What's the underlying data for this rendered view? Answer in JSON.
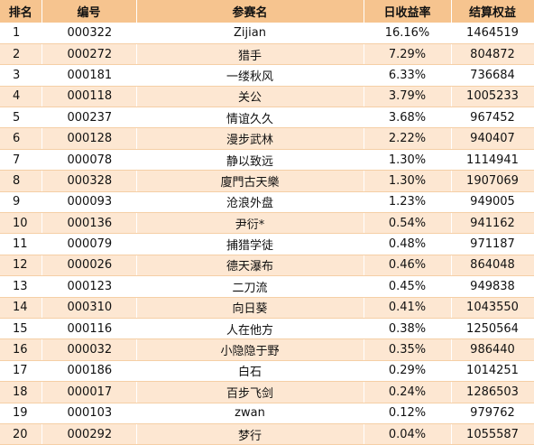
{
  "headers": [
    "排名",
    "编号",
    "参赛名",
    "日收益率",
    "结算权益"
  ],
  "rows": [
    {
      "rank": "1",
      "id": "000322",
      "name": "Zijian",
      "rate": "16.16%",
      "equity": "1464519"
    },
    {
      "rank": "2",
      "id": "000272",
      "name": "猎手",
      "rate": "7.29%",
      "equity": "804872"
    },
    {
      "rank": "3",
      "id": "000181",
      "name": "一缕秋风",
      "rate": "6.33%",
      "equity": "736684"
    },
    {
      "rank": "4",
      "id": "000118",
      "name": "关公",
      "rate": "3.79%",
      "equity": "1005233"
    },
    {
      "rank": "5",
      "id": "000237",
      "name": "情谊久久",
      "rate": "3.68%",
      "equity": "967452"
    },
    {
      "rank": "6",
      "id": "000128",
      "name": "漫步武林",
      "rate": "2.22%",
      "equity": "940407"
    },
    {
      "rank": "7",
      "id": "000078",
      "name": "静以致远",
      "rate": "1.30%",
      "equity": "1114941"
    },
    {
      "rank": "8",
      "id": "000328",
      "name": "廈門古天樂",
      "rate": "1.30%",
      "equity": "1907069"
    },
    {
      "rank": "9",
      "id": "000093",
      "name": "沧浪外盘",
      "rate": "1.23%",
      "equity": "949005"
    },
    {
      "rank": "10",
      "id": "000136",
      "name": "尹衍*",
      "rate": "0.54%",
      "equity": "941162"
    },
    {
      "rank": "11",
      "id": "000079",
      "name": "捕猎学徒",
      "rate": "0.48%",
      "equity": "971187"
    },
    {
      "rank": "12",
      "id": "000026",
      "name": "德天瀑布",
      "rate": "0.46%",
      "equity": "864048"
    },
    {
      "rank": "13",
      "id": "000123",
      "name": "二刀流",
      "rate": "0.45%",
      "equity": "949838"
    },
    {
      "rank": "14",
      "id": "000310",
      "name": "向日葵",
      "rate": "0.41%",
      "equity": "1043550"
    },
    {
      "rank": "15",
      "id": "000116",
      "name": "人在他方",
      "rate": "0.38%",
      "equity": "1250564"
    },
    {
      "rank": "16",
      "id": "000032",
      "name": "小隐隐于野",
      "rate": "0.35%",
      "equity": "986440"
    },
    {
      "rank": "17",
      "id": "000186",
      "name": "白石",
      "rate": "0.29%",
      "equity": "1014251"
    },
    {
      "rank": "18",
      "id": "000017",
      "name": "百步飞剑",
      "rate": "0.24%",
      "equity": "1286503"
    },
    {
      "rank": "19",
      "id": "000103",
      "name": "zwan",
      "rate": "0.12%",
      "equity": "979762"
    },
    {
      "rank": "20",
      "id": "000292",
      "name": "梦行",
      "rate": "0.04%",
      "equity": "1055587"
    }
  ],
  "colors": {
    "header_bg": "#f6c48f",
    "stripe_bg": "#fde7d2",
    "row_bg": "#ffffff",
    "text": "#111111"
  }
}
